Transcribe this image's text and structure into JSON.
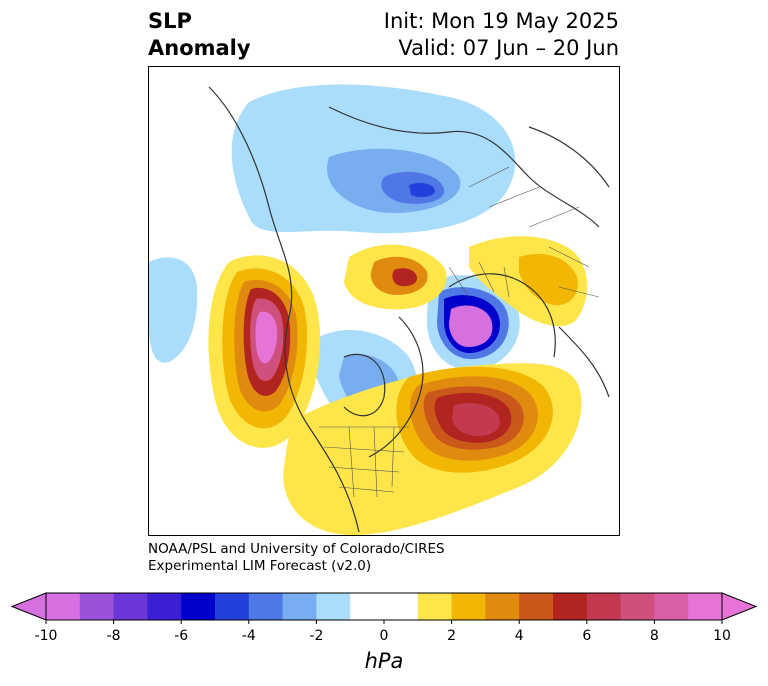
{
  "title": {
    "left_line1": "SLP",
    "left_line2": "Anomaly",
    "right_line1": "Init: Mon 19 May 2025",
    "right_line2": "Valid: 07 Jun – 20 Jun"
  },
  "credit": {
    "line1": "NOAA/PSL and University of Colorado/CIRES",
    "line2": "Experimental LIM Forecast (v2.0)"
  },
  "colorbar": {
    "unit": "hPa",
    "tick_labels": [
      "-10",
      "-8",
      "-6",
      "-4",
      "-2",
      "0",
      "2",
      "4",
      "6",
      "8",
      "10"
    ],
    "tick_values": [
      -10,
      -8,
      -6,
      -4,
      -2,
      0,
      2,
      4,
      6,
      8,
      10
    ],
    "colors": [
      "#d66fe0",
      "#9b52db",
      "#6b36d8",
      "#3a1fd4",
      "#0000cc",
      "#2340dd",
      "#4f78e6",
      "#78aef0",
      "#aadcfb",
      "#ffffff",
      "#ffffff",
      "#fde54a",
      "#f2b705",
      "#e08b10",
      "#c9581a",
      "#b1241f",
      "#c33a50",
      "#cf4f7d",
      "#d95fa6",
      "#e674d6"
    ],
    "min_color": "#d66fe0",
    "max_color": "#e674d6"
  }
}
